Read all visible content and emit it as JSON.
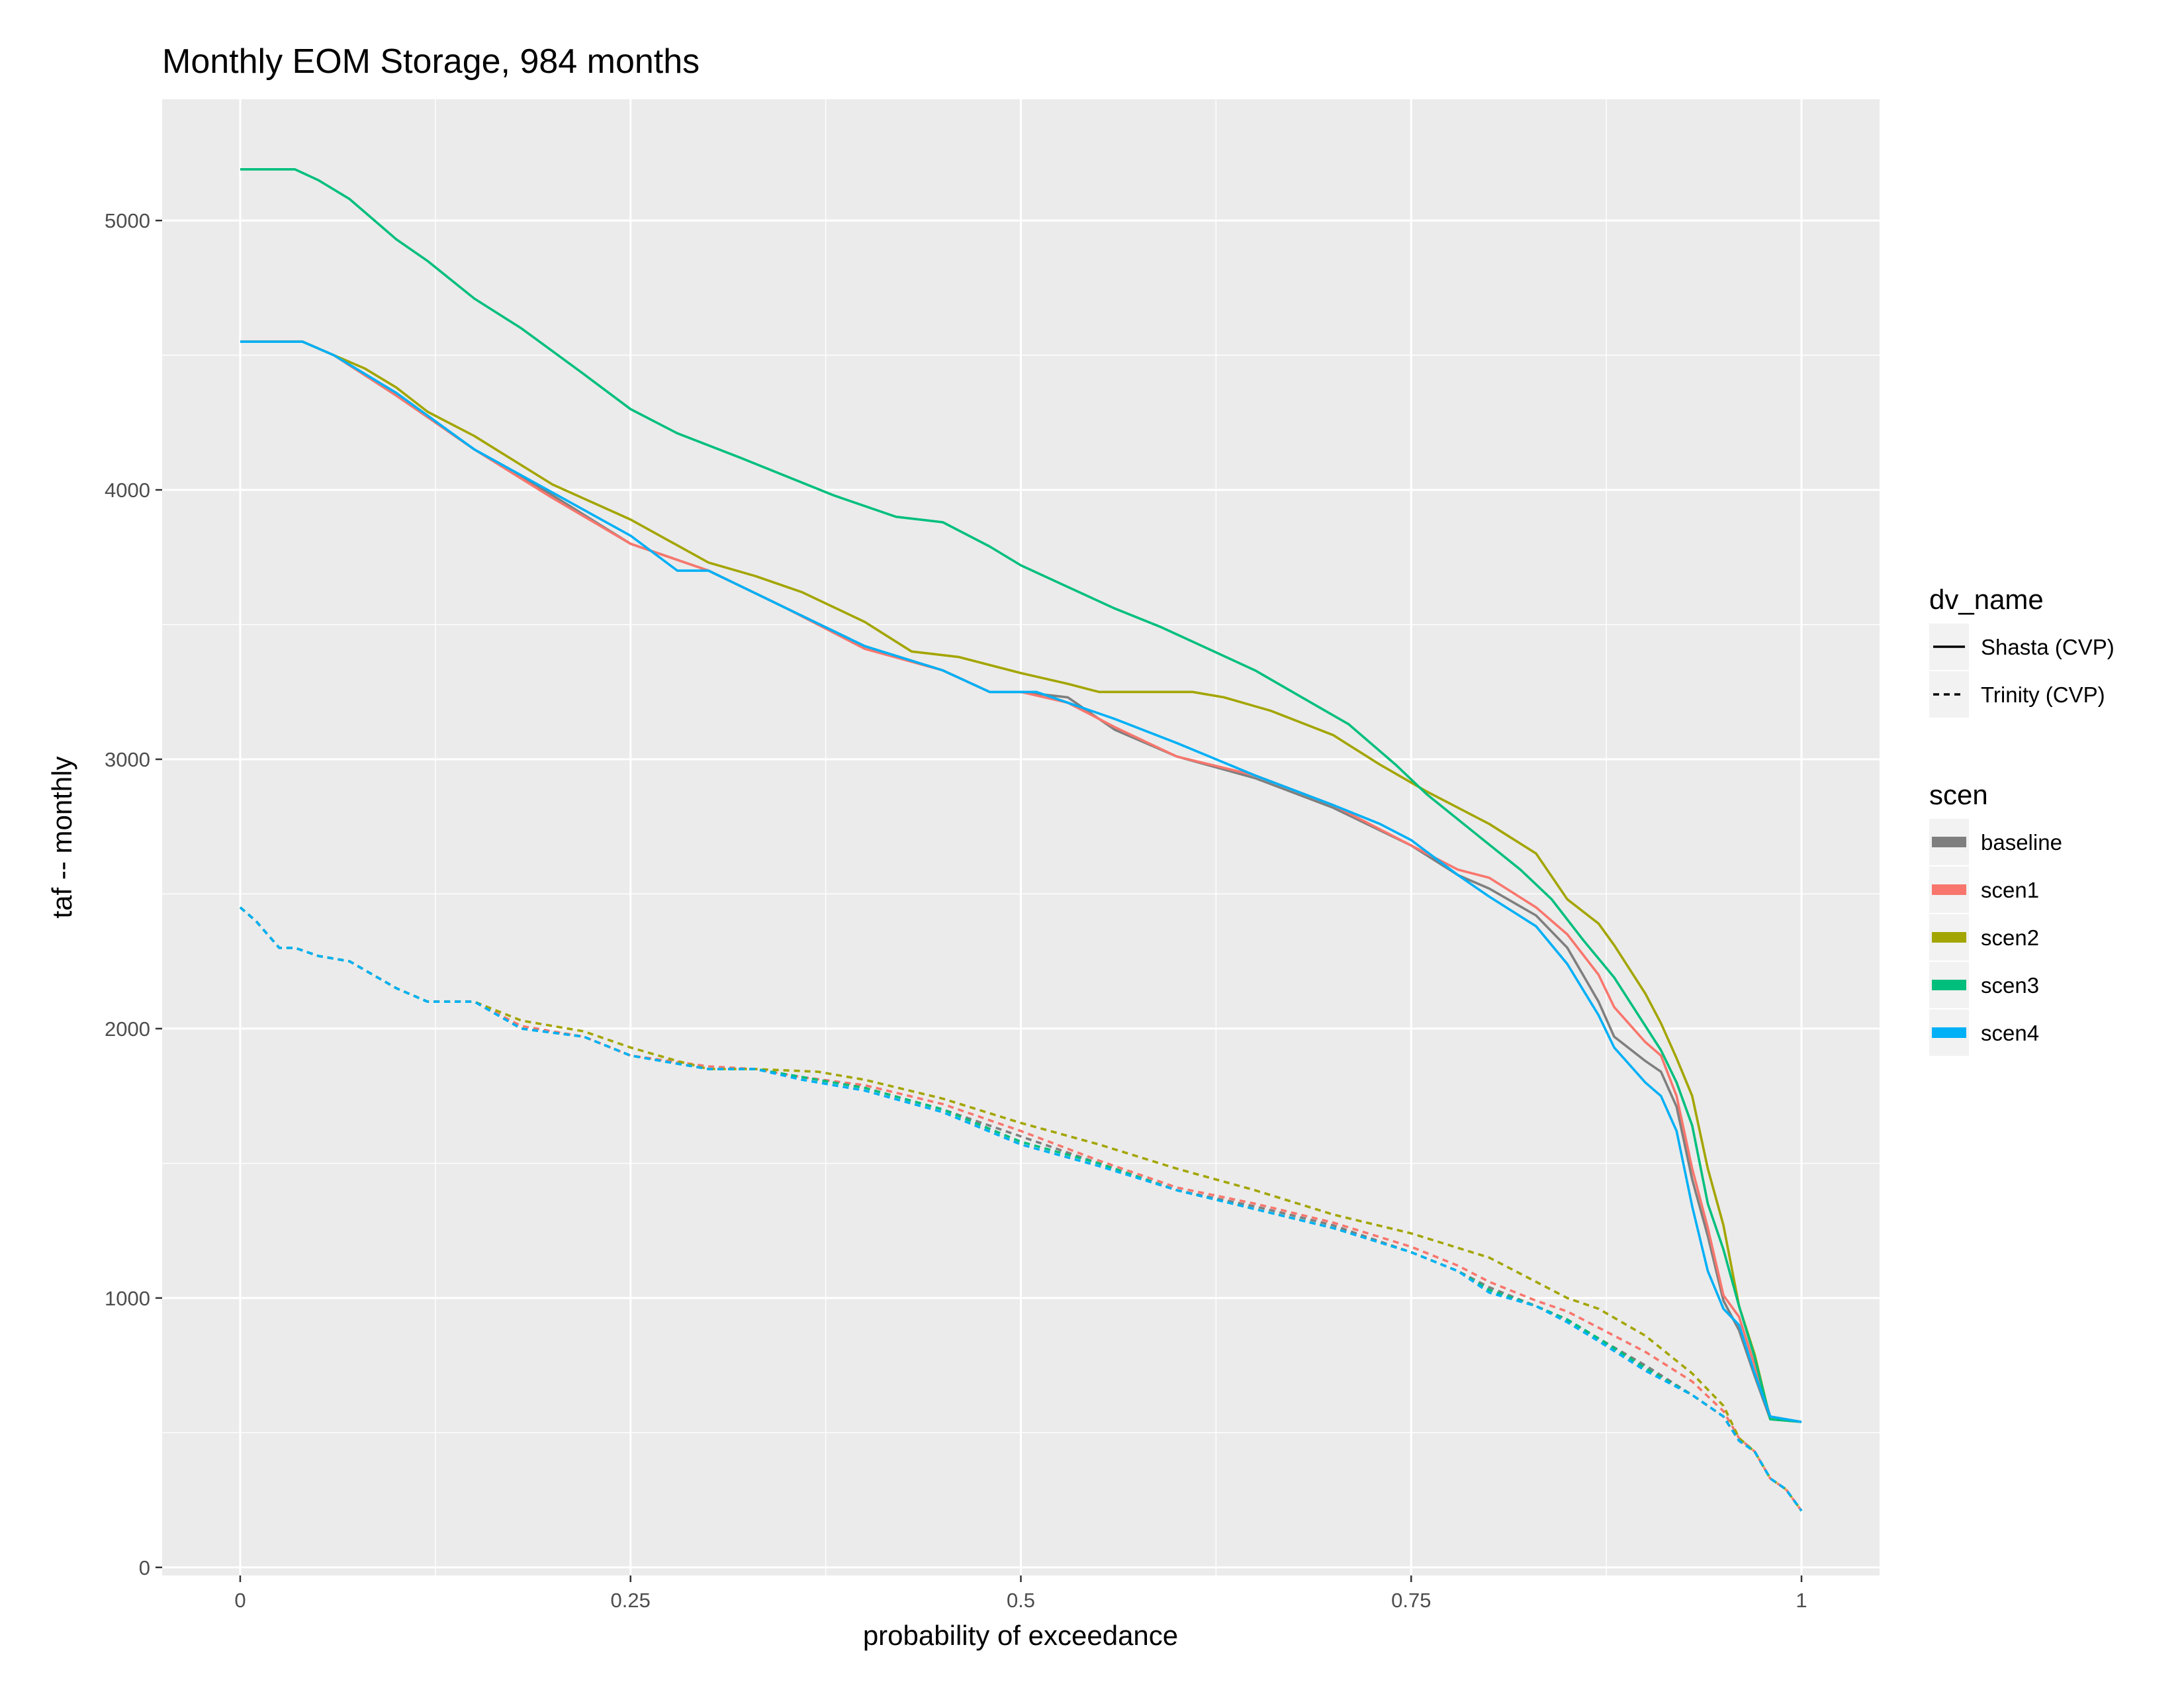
{
  "chart_data": {
    "type": "line",
    "title": "Monthly EOM Storage, 984 months",
    "xlabel": "probability of exceedance",
    "ylabel": "taf -- monthly",
    "xlim": [
      -0.05,
      1.05
    ],
    "ylim": [
      -30,
      5450
    ],
    "x_ticks": [
      0,
      0.25,
      0.5,
      0.75,
      1
    ],
    "x_tick_labels": [
      "0",
      "0.25",
      "0.5",
      "0.75",
      "1"
    ],
    "y_ticks": [
      0,
      1000,
      2000,
      3000,
      4000,
      5000
    ],
    "y_tick_labels": [
      "0",
      "1000",
      "2000",
      "3000",
      "4000",
      "5000"
    ],
    "grid": true,
    "legend_placement": "right",
    "legend_linetype": {
      "title": "dv_name",
      "entries": [
        {
          "label": "Shasta (CVP)",
          "dash": "solid"
        },
        {
          "label": "Trinity (CVP)",
          "dash": "dashed"
        }
      ]
    },
    "legend_color": {
      "title": "scen",
      "entries": [
        {
          "label": "baseline",
          "color": "#7f7f7f"
        },
        {
          "label": "scen1",
          "color": "#f8766d"
        },
        {
          "label": "scen2",
          "color": "#a3a500"
        },
        {
          "label": "scen3",
          "color": "#00bf7d"
        },
        {
          "label": "scen4",
          "color": "#00b0f6"
        }
      ]
    },
    "series": [
      {
        "scen": "baseline",
        "dv_name": "Shasta (CVP)",
        "color": "#7f7f7f",
        "x": [
          0,
          0.04,
          0.06,
          0.1,
          0.15,
          0.2,
          0.25,
          0.3,
          0.35,
          0.4,
          0.45,
          0.48,
          0.5,
          0.53,
          0.56,
          0.6,
          0.65,
          0.7,
          0.75,
          0.78,
          0.8,
          0.83,
          0.85,
          0.87,
          0.88,
          0.9,
          0.91,
          0.92,
          0.93,
          0.94,
          0.95,
          0.96,
          0.97,
          0.98,
          1
        ],
        "y": [
          4550,
          4550,
          4500,
          4350,
          4150,
          3980,
          3800,
          3700,
          3560,
          3420,
          3330,
          3250,
          3250,
          3230,
          3110,
          3010,
          2930,
          2820,
          2680,
          2570,
          2520,
          2420,
          2300,
          2100,
          1970,
          1880,
          1840,
          1710,
          1440,
          1230,
          990,
          880,
          710,
          550,
          540
        ]
      },
      {
        "scen": "scen1",
        "dv_name": "Shasta (CVP)",
        "color": "#f8766d",
        "x": [
          0,
          0.04,
          0.06,
          0.1,
          0.15,
          0.2,
          0.25,
          0.3,
          0.35,
          0.4,
          0.45,
          0.48,
          0.5,
          0.53,
          0.56,
          0.6,
          0.65,
          0.7,
          0.75,
          0.78,
          0.8,
          0.83,
          0.85,
          0.87,
          0.88,
          0.9,
          0.91,
          0.92,
          0.93,
          0.94,
          0.95,
          0.96,
          0.97,
          0.98,
          1
        ],
        "y": [
          4550,
          4550,
          4500,
          4350,
          4150,
          3970,
          3800,
          3700,
          3560,
          3410,
          3330,
          3250,
          3250,
          3210,
          3120,
          3010,
          2940,
          2830,
          2680,
          2590,
          2560,
          2450,
          2350,
          2200,
          2080,
          1950,
          1900,
          1750,
          1480,
          1260,
          1010,
          930,
          750,
          560,
          540
        ]
      },
      {
        "scen": "scen2",
        "dv_name": "Shasta (CVP)",
        "color": "#a3a500",
        "x": [
          0,
          0.04,
          0.06,
          0.08,
          0.1,
          0.12,
          0.15,
          0.2,
          0.25,
          0.3,
          0.33,
          0.36,
          0.4,
          0.43,
          0.46,
          0.5,
          0.53,
          0.55,
          0.58,
          0.61,
          0.63,
          0.66,
          0.7,
          0.73,
          0.76,
          0.8,
          0.83,
          0.85,
          0.87,
          0.88,
          0.9,
          0.91,
          0.92,
          0.93,
          0.94,
          0.95,
          0.96,
          0.97,
          0.98,
          1
        ],
        "y": [
          4550,
          4550,
          4500,
          4450,
          4380,
          4290,
          4200,
          4020,
          3890,
          3730,
          3680,
          3620,
          3510,
          3400,
          3380,
          3320,
          3280,
          3250,
          3250,
          3250,
          3230,
          3180,
          3090,
          2980,
          2880,
          2760,
          2650,
          2480,
          2390,
          2310,
          2130,
          2020,
          1890,
          1750,
          1480,
          1270,
          970,
          790,
          550,
          540
        ]
      },
      {
        "scen": "scen3",
        "dv_name": "Shasta (CVP)",
        "color": "#00bf7d",
        "x": [
          0,
          0.035,
          0.05,
          0.07,
          0.09,
          0.1,
          0.12,
          0.15,
          0.18,
          0.22,
          0.25,
          0.28,
          0.32,
          0.35,
          0.38,
          0.42,
          0.45,
          0.48,
          0.5,
          0.53,
          0.56,
          0.59,
          0.62,
          0.65,
          0.68,
          0.71,
          0.74,
          0.76,
          0.79,
          0.82,
          0.84,
          0.86,
          0.88,
          0.9,
          0.91,
          0.92,
          0.93,
          0.94,
          0.95,
          0.96,
          0.97,
          0.98,
          1
        ],
        "y": [
          5190,
          5190,
          5150,
          5080,
          4980,
          4930,
          4850,
          4710,
          4600,
          4430,
          4300,
          4210,
          4120,
          4050,
          3980,
          3900,
          3880,
          3790,
          3720,
          3640,
          3560,
          3490,
          3410,
          3330,
          3230,
          3130,
          2980,
          2870,
          2730,
          2590,
          2480,
          2330,
          2190,
          2010,
          1920,
          1800,
          1640,
          1350,
          1180,
          970,
          780,
          550,
          540
        ]
      },
      {
        "scen": "scen4",
        "dv_name": "Shasta (CVP)",
        "color": "#00b0f6",
        "x": [
          0,
          0.04,
          0.06,
          0.1,
          0.15,
          0.2,
          0.25,
          0.28,
          0.3,
          0.35,
          0.4,
          0.45,
          0.48,
          0.5,
          0.51,
          0.53,
          0.56,
          0.6,
          0.65,
          0.7,
          0.73,
          0.75,
          0.78,
          0.8,
          0.83,
          0.85,
          0.87,
          0.88,
          0.9,
          0.91,
          0.92,
          0.93,
          0.94,
          0.95,
          0.96,
          0.97,
          0.98,
          1
        ],
        "y": [
          4550,
          4550,
          4500,
          4360,
          4150,
          3990,
          3830,
          3700,
          3700,
          3560,
          3420,
          3330,
          3250,
          3250,
          3250,
          3210,
          3150,
          3060,
          2940,
          2830,
          2760,
          2700,
          2570,
          2490,
          2380,
          2240,
          2050,
          1930,
          1800,
          1750,
          1620,
          1340,
          1100,
          960,
          900,
          720,
          560,
          540
        ]
      },
      {
        "scen": "baseline",
        "dv_name": "Trinity (CVP)",
        "color": "#7f7f7f",
        "x": [
          0,
          0.01,
          0.025,
          0.035,
          0.05,
          0.07,
          0.1,
          0.12,
          0.15,
          0.18,
          0.22,
          0.25,
          0.3,
          0.33,
          0.36,
          0.4,
          0.45,
          0.5,
          0.55,
          0.6,
          0.65,
          0.7,
          0.75,
          0.78,
          0.8,
          0.83,
          0.85,
          0.87,
          0.9,
          0.93,
          0.95,
          0.96,
          0.97,
          0.98,
          0.99,
          1
        ],
        "y": [
          2450,
          2400,
          2300,
          2300,
          2270,
          2250,
          2150,
          2100,
          2100,
          2000,
          1970,
          1900,
          1850,
          1850,
          1820,
          1780,
          1700,
          1600,
          1500,
          1400,
          1340,
          1270,
          1170,
          1100,
          1040,
          970,
          920,
          850,
          750,
          640,
          560,
          470,
          430,
          330,
          290,
          210
        ]
      },
      {
        "scen": "scen1",
        "dv_name": "Trinity (CVP)",
        "color": "#f8766d",
        "x": [
          0,
          0.01,
          0.025,
          0.035,
          0.05,
          0.07,
          0.1,
          0.12,
          0.15,
          0.18,
          0.22,
          0.25,
          0.3,
          0.33,
          0.36,
          0.4,
          0.45,
          0.5,
          0.55,
          0.6,
          0.65,
          0.7,
          0.75,
          0.78,
          0.8,
          0.83,
          0.85,
          0.87,
          0.9,
          0.93,
          0.95,
          0.96,
          0.97,
          0.98,
          0.99,
          1
        ],
        "y": [
          2450,
          2400,
          2300,
          2300,
          2270,
          2250,
          2150,
          2100,
          2100,
          2010,
          1970,
          1900,
          1860,
          1850,
          1820,
          1790,
          1720,
          1620,
          1510,
          1410,
          1350,
          1280,
          1190,
          1120,
          1060,
          990,
          950,
          890,
          800,
          690,
          580,
          480,
          430,
          330,
          290,
          210
        ]
      },
      {
        "scen": "scen2",
        "dv_name": "Trinity (CVP)",
        "color": "#a3a500",
        "x": [
          0,
          0.01,
          0.025,
          0.035,
          0.05,
          0.07,
          0.1,
          0.12,
          0.15,
          0.18,
          0.22,
          0.25,
          0.28,
          0.3,
          0.33,
          0.37,
          0.4,
          0.45,
          0.5,
          0.55,
          0.6,
          0.65,
          0.7,
          0.75,
          0.8,
          0.83,
          0.85,
          0.87,
          0.9,
          0.93,
          0.95,
          0.96,
          0.97,
          0.98,
          0.99,
          1
        ],
        "y": [
          2450,
          2400,
          2300,
          2300,
          2270,
          2250,
          2150,
          2100,
          2100,
          2030,
          1990,
          1930,
          1880,
          1850,
          1850,
          1840,
          1810,
          1740,
          1650,
          1570,
          1480,
          1400,
          1310,
          1240,
          1150,
          1060,
          1000,
          960,
          860,
          720,
          600,
          480,
          430,
          330,
          290,
          210
        ]
      },
      {
        "scen": "scen3",
        "dv_name": "Trinity (CVP)",
        "color": "#00bf7d",
        "x": [
          0,
          0.01,
          0.025,
          0.035,
          0.05,
          0.07,
          0.1,
          0.12,
          0.15,
          0.18,
          0.22,
          0.25,
          0.3,
          0.33,
          0.36,
          0.4,
          0.45,
          0.5,
          0.55,
          0.6,
          0.65,
          0.7,
          0.75,
          0.78,
          0.8,
          0.83,
          0.85,
          0.87,
          0.9,
          0.93,
          0.95,
          0.96,
          0.97,
          0.98,
          0.99,
          1
        ],
        "y": [
          2450,
          2400,
          2300,
          2300,
          2270,
          2250,
          2150,
          2100,
          2100,
          2000,
          1970,
          1900,
          1850,
          1850,
          1820,
          1780,
          1700,
          1580,
          1500,
          1400,
          1330,
          1260,
          1170,
          1100,
          1030,
          970,
          920,
          850,
          740,
          640,
          560,
          470,
          430,
          330,
          290,
          210
        ]
      },
      {
        "scen": "scen4",
        "dv_name": "Trinity (CVP)",
        "color": "#00b0f6",
        "x": [
          0,
          0.01,
          0.025,
          0.035,
          0.05,
          0.07,
          0.1,
          0.12,
          0.15,
          0.18,
          0.22,
          0.25,
          0.3,
          0.33,
          0.36,
          0.4,
          0.45,
          0.5,
          0.55,
          0.6,
          0.65,
          0.7,
          0.75,
          0.78,
          0.8,
          0.83,
          0.85,
          0.87,
          0.9,
          0.93,
          0.95,
          0.96,
          0.97,
          0.98,
          0.99,
          1
        ],
        "y": [
          2450,
          2400,
          2300,
          2300,
          2270,
          2250,
          2150,
          2100,
          2100,
          2000,
          1970,
          1900,
          1850,
          1850,
          1810,
          1770,
          1690,
          1570,
          1490,
          1400,
          1330,
          1260,
          1170,
          1100,
          1020,
          970,
          910,
          840,
          730,
          640,
          560,
          470,
          430,
          330,
          290,
          210
        ]
      }
    ]
  }
}
